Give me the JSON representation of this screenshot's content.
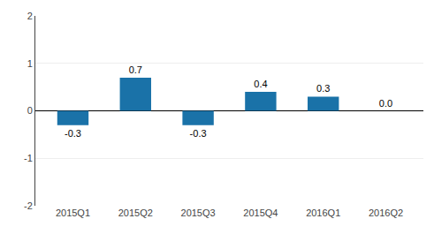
{
  "chart_data": {
    "type": "bar",
    "categories": [
      "2015Q1",
      "2015Q2",
      "2015Q3",
      "2015Q4",
      "2016Q1",
      "2016Q2"
    ],
    "values": [
      -0.3,
      0.7,
      -0.3,
      0.4,
      0.3,
      0.0
    ],
    "value_labels": [
      "-0.3",
      "0.7",
      "-0.3",
      "0.4",
      "0.3",
      "0.0"
    ],
    "data_labels": true,
    "color": "#1a72a8",
    "ylim": [
      -2,
      2
    ],
    "yticks": [
      -2,
      -1,
      0,
      1,
      2
    ],
    "grid": true
  }
}
